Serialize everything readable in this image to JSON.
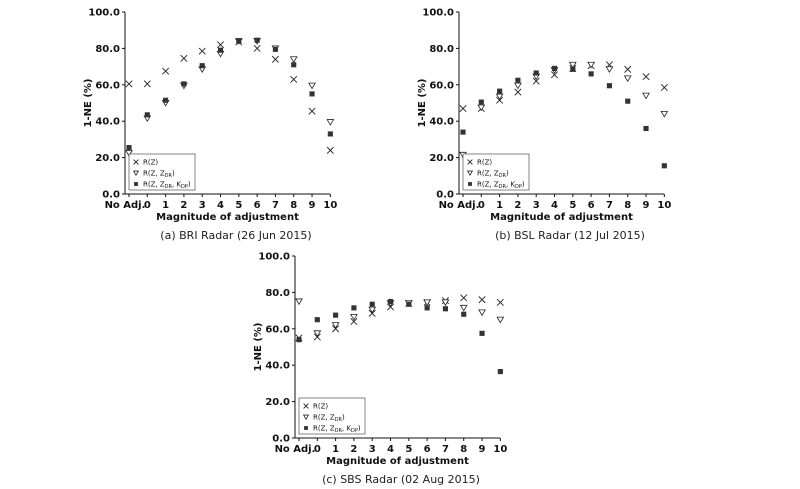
{
  "chart_data": [
    {
      "type": "scatter",
      "caption": "(a) BRI Radar (26 Jun 2015)",
      "xlabel": "Magnitude of adjustment",
      "ylabel": "1-NE (%)",
      "categories": [
        "No Adj.",
        "0",
        "1",
        "2",
        "3",
        "4",
        "5",
        "6",
        "7",
        "8",
        "9",
        "10"
      ],
      "ylim": [
        0,
        100
      ],
      "yticks": [
        "0.0",
        "20.0",
        "40.0",
        "60.0",
        "80.0",
        "100.0"
      ],
      "legend_position": "bottom-left",
      "series": [
        {
          "name": "R(Z)",
          "name_parts": [
            "R(Z)"
          ],
          "marker": "x",
          "values": [
            60.5,
            60.5,
            67.5,
            74.5,
            78.5,
            82,
            83.5,
            80,
            74,
            63,
            45.5,
            24
          ]
        },
        {
          "name": "R(Z, ZDR)",
          "name_parts": [
            "R(Z, Z",
            "DR",
            ")"
          ],
          "marker": "triangle-down-open",
          "values": [
            22.5,
            41.5,
            50,
            59.5,
            68.5,
            77,
            84,
            84,
            80,
            74,
            59.5,
            39.5
          ]
        },
        {
          "name": "R(Z, ZDR, KDP)",
          "name_parts": [
            "R(Z, Z",
            "DR",
            ", K",
            "DP",
            ")"
          ],
          "marker": "square-filled",
          "values": [
            25.5,
            43.5,
            51.5,
            60.5,
            70.5,
            79,
            84,
            84.5,
            79.5,
            71,
            55,
            33
          ]
        }
      ]
    },
    {
      "type": "scatter",
      "caption": "(b) BSL Radar (12 Jul 2015)",
      "xlabel": "Magnitude of adjustment",
      "ylabel": "1-NE (%)",
      "categories": [
        "No Adj.",
        "0",
        "1",
        "2",
        "3",
        "4",
        "5",
        "6",
        "7",
        "8",
        "9",
        "10"
      ],
      "ylim": [
        0,
        100
      ],
      "yticks": [
        "0.0",
        "20.0",
        "40.0",
        "60.0",
        "80.0",
        "100.0"
      ],
      "legend_position": "bottom-left",
      "series": [
        {
          "name": "R(Z)",
          "name_parts": [
            "R(Z)"
          ],
          "marker": "x",
          "values": [
            47,
            47,
            51.5,
            56,
            62,
            65.5,
            69,
            70.5,
            71,
            68.5,
            64.5,
            58.5
          ]
        },
        {
          "name": "R(Z, ZDR)",
          "name_parts": [
            "R(Z, Z",
            "DR",
            ")"
          ],
          "marker": "triangle-down-open",
          "values": [
            21.5,
            47.5,
            53.5,
            59.5,
            64.5,
            68,
            71,
            71,
            68.5,
            63.5,
            54,
            44
          ]
        },
        {
          "name": "R(Z, ZDR, KDP)",
          "name_parts": [
            "R(Z, Z",
            "DR",
            ", K",
            "DP",
            ")"
          ],
          "marker": "square-filled",
          "values": [
            34,
            50.5,
            56.5,
            62.5,
            66.5,
            69,
            68.5,
            66,
            59.5,
            51,
            36,
            15.5
          ]
        }
      ]
    },
    {
      "type": "scatter",
      "caption": "(c) SBS Radar (02 Aug 2015)",
      "xlabel": "Magnitude of adjustment",
      "ylabel": "1-NE (%)",
      "categories": [
        "No Adj.",
        "0",
        "1",
        "2",
        "3",
        "4",
        "5",
        "6",
        "7",
        "8",
        "9",
        "10"
      ],
      "ylim": [
        0,
        100
      ],
      "yticks": [
        "0.0",
        "20.0",
        "40.0",
        "60.0",
        "80.0",
        "100.0"
      ],
      "legend_position": "bottom-left",
      "series": [
        {
          "name": "R(Z)",
          "name_parts": [
            "R(Z)"
          ],
          "marker": "x",
          "values": [
            55,
            55.5,
            60,
            64,
            68.5,
            72,
            74,
            74.5,
            75.5,
            77,
            76,
            74.5
          ]
        },
        {
          "name": "R(Z, ZDR)",
          "name_parts": [
            "R(Z, Z",
            "DR",
            ")"
          ],
          "marker": "triangle-down-open",
          "values": [
            75,
            57.5,
            62,
            66.5,
            70.5,
            74,
            74,
            74.5,
            74.5,
            71.5,
            69,
            65
          ]
        },
        {
          "name": "R(Z, ZDR, KDP)",
          "name_parts": [
            "R(Z, Z",
            "DR",
            ", K",
            "DP",
            ")"
          ],
          "marker": "square-filled",
          "values": [
            54,
            65,
            67.5,
            71.5,
            73.5,
            75,
            73.5,
            71.5,
            71,
            68,
            57.5,
            36.5
          ]
        }
      ]
    }
  ]
}
